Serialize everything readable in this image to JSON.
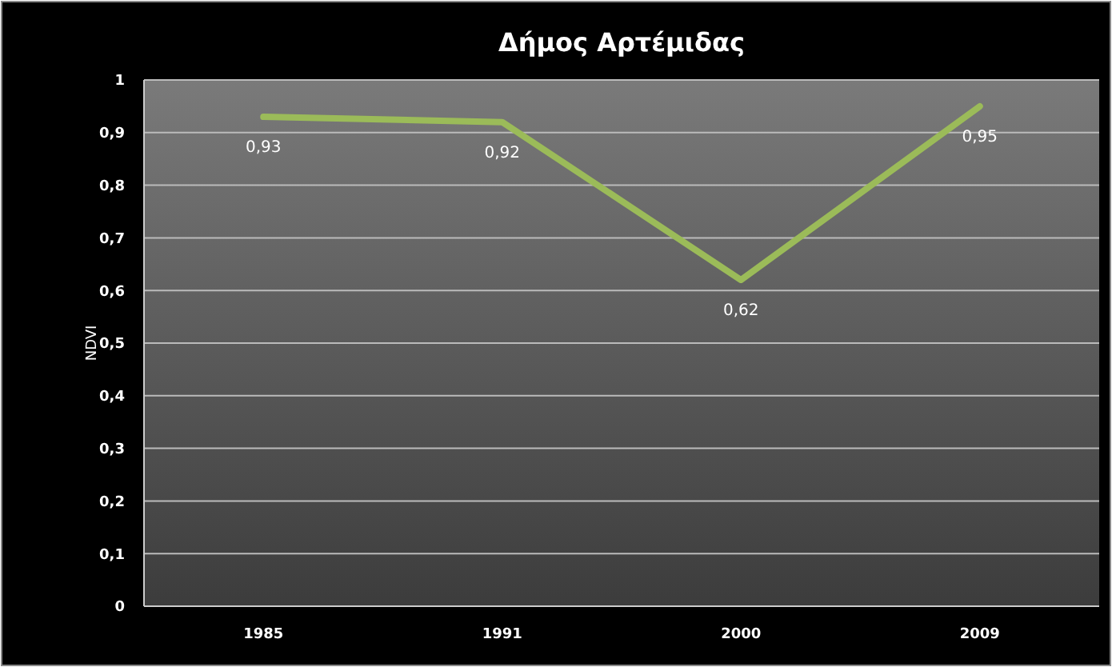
{
  "chart_data": {
    "type": "line",
    "title": "Δήμος Αρτέμιδας",
    "ylabel": "NDVI",
    "categories": [
      "1985",
      "1991",
      "2000",
      "2009"
    ],
    "series": [
      {
        "color": "#9bbb59",
        "values": [
          0.93,
          0.92,
          0.62,
          0.95
        ],
        "value_labels": [
          "0,93",
          "0,92",
          "0,62",
          "0,95"
        ]
      }
    ],
    "ylim": [
      0,
      1
    ],
    "yticks": [
      {
        "value": 0,
        "label": "0"
      },
      {
        "value": 0.1,
        "label": "0,1"
      },
      {
        "value": 0.2,
        "label": "0,2"
      },
      {
        "value": 0.3,
        "label": "0,3"
      },
      {
        "value": 0.4,
        "label": "0,4"
      },
      {
        "value": 0.5,
        "label": "0,5"
      },
      {
        "value": 0.6,
        "label": "0,6"
      },
      {
        "value": 0.7,
        "label": "0,7"
      },
      {
        "value": 0.8,
        "label": "0,8"
      },
      {
        "value": 0.9,
        "label": "0,9"
      },
      {
        "value": 1,
        "label": "1"
      }
    ],
    "grid": "y",
    "marker": "none",
    "line_style": "solid"
  }
}
